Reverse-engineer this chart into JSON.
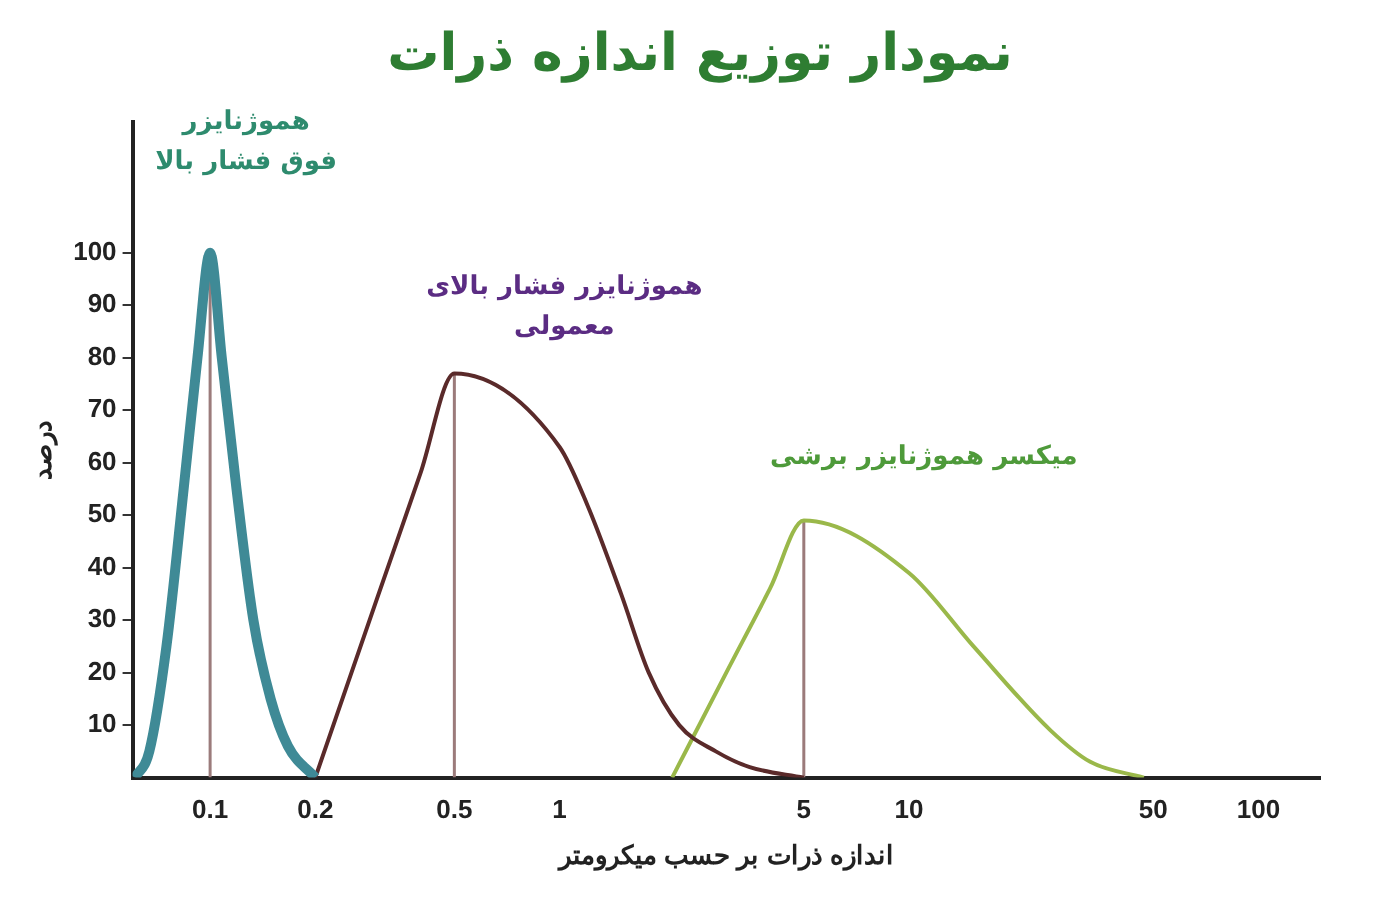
{
  "chart_data": {
    "type": "line",
    "title": "نمودار توزیع اندازه ذرات",
    "xlabel": "اندازه ذرات بر حسب میکرومتر",
    "ylabel": "درصد",
    "log": "x",
    "xlim": [
      0.06,
      150
    ],
    "xticks": [
      0.1,
      0.2,
      0.5,
      1,
      5,
      10,
      50,
      100
    ],
    "ylim": [
      0,
      125
    ],
    "yticks": [
      10,
      20,
      30,
      40,
      50,
      60,
      70,
      80,
      90,
      100
    ],
    "grid": false,
    "legend": false,
    "marker": "none",
    "line_style": "solid",
    "series": [
      {
        "name": "هموژنایزر فوق فشار بالا",
        "color": "#3f8a96",
        "x": [
          0.061,
          0.067,
          0.075,
          0.084,
          0.092,
          0.1,
          0.108,
          0.119,
          0.133,
          0.149,
          0.167,
          0.2
        ],
        "values": [
          0,
          5,
          25,
          55,
          80,
          100,
          80,
          55,
          30,
          15,
          6,
          0
        ]
      },
      {
        "name": "هموژنایزر فشار بالای معمولی",
        "color": "#5a2a2a",
        "x": [
          0.2,
          0.3,
          0.4,
          0.5,
          1,
          1.2,
          1.5,
          1.8,
          2.2,
          2.8,
          3.5,
          5
        ],
        "values": [
          0,
          34,
          58,
          77,
          63,
          52,
          35,
          20,
          10,
          5,
          2,
          0
        ]
      },
      {
        "name": "میکسر هموژنایزر برشی",
        "color": "#9ab84a",
        "x": [
          2.1,
          3,
          4,
          5,
          10,
          15.3,
          25.4,
          33,
          47
        ],
        "values": [
          0,
          20,
          36,
          49,
          39,
          25,
          9,
          3,
          0
        ]
      },
      {
        "color": "#9b7b7b",
        "x": [
          0.1,
          0.1
        ],
        "values": [
          0,
          100
        ]
      },
      {
        "color": "#9b7b7b",
        "x": [
          0.5,
          0.5
        ],
        "values": [
          0,
          77
        ]
      },
      {
        "color": "#9b7b7b",
        "x": [
          5,
          5
        ],
        "values": [
          0,
          49
        ]
      }
    ]
  }
}
